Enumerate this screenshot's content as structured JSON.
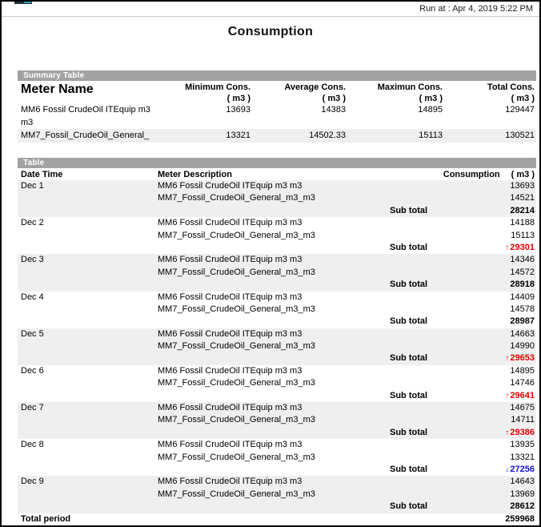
{
  "page": {
    "run_at": "Run at : Apr 4, 2019 5:22 PM",
    "title": "Consumption"
  },
  "summary_table": {
    "section_label": "Summary Table",
    "meter_name_header": "Meter Name",
    "unit_label": "( m3 )",
    "numeric_columns": [
      "Minimum Cons.",
      "Average Cons.",
      "Maximun Cons.",
      "Total Cons."
    ],
    "rows": [
      {
        "meter_name": "MM6 Fossil CrudeOil ITEquip m3 m3",
        "values": [
          "13693",
          "14383",
          "14895",
          "129447"
        ]
      },
      {
        "meter_name": "MM7_Fossil_CrudeOil_General_",
        "values": [
          "13321",
          "14502.33",
          "15113",
          "130521"
        ]
      }
    ]
  },
  "detail_table": {
    "section_label": "Table",
    "date_header": "Date Time",
    "meter_header": "Meter Description",
    "consumption_header": "Consumption",
    "unit_label": "( m3 )",
    "subtotal_label": "Sub total",
    "days": [
      {
        "date": "Dec 1",
        "rows": [
          {
            "desc": "MM6 Fossil CrudeOil ITEquip m3 m3",
            "value": "13693"
          },
          {
            "desc": "MM7_Fossil_CrudeOil_General_m3_m3",
            "value": "14521"
          }
        ],
        "subtotal": "28214",
        "trend": "flat"
      },
      {
        "date": "Dec 2",
        "rows": [
          {
            "desc": "MM6 Fossil CrudeOil ITEquip m3 m3",
            "value": "14188"
          },
          {
            "desc": "MM7_Fossil_CrudeOil_General_m3_m3",
            "value": "15113"
          }
        ],
        "subtotal": "29301",
        "trend": "up"
      },
      {
        "date": "Dec 3",
        "rows": [
          {
            "desc": "MM6 Fossil CrudeOil ITEquip m3 m3",
            "value": "14346"
          },
          {
            "desc": "MM7_Fossil_CrudeOil_General_m3_m3",
            "value": "14572"
          }
        ],
        "subtotal": "28918",
        "trend": "flat"
      },
      {
        "date": "Dec 4",
        "rows": [
          {
            "desc": "MM6 Fossil CrudeOil ITEquip m3 m3",
            "value": "14409"
          },
          {
            "desc": "MM7_Fossil_CrudeOil_General_m3_m3",
            "value": "14578"
          }
        ],
        "subtotal": "28987",
        "trend": "flat"
      },
      {
        "date": "Dec 5",
        "rows": [
          {
            "desc": "MM6 Fossil CrudeOil ITEquip m3 m3",
            "value": "14663"
          },
          {
            "desc": "MM7_Fossil_CrudeOil_General_m3_m3",
            "value": "14990"
          }
        ],
        "subtotal": "29653",
        "trend": "up"
      },
      {
        "date": "Dec 6",
        "rows": [
          {
            "desc": "MM6 Fossil CrudeOil ITEquip m3 m3",
            "value": "14895"
          },
          {
            "desc": "MM7_Fossil_CrudeOil_General_m3_m3",
            "value": "14746"
          }
        ],
        "subtotal": "29641",
        "trend": "up"
      },
      {
        "date": "Dec 7",
        "rows": [
          {
            "desc": "MM6 Fossil CrudeOil ITEquip m3 m3",
            "value": "14675"
          },
          {
            "desc": "MM7_Fossil_CrudeOil_General_m3_m3",
            "value": "14711"
          }
        ],
        "subtotal": "29386",
        "trend": "up"
      },
      {
        "date": "Dec 8",
        "rows": [
          {
            "desc": "MM6 Fossil CrudeOil ITEquip m3 m3",
            "value": "13935"
          },
          {
            "desc": "MM7_Fossil_CrudeOil_General_m3_m3",
            "value": "13321"
          }
        ],
        "subtotal": "27256",
        "trend": "down"
      },
      {
        "date": "Dec 9",
        "rows": [
          {
            "desc": "MM6 Fossil CrudeOil ITEquip m3 m3",
            "value": "14643"
          },
          {
            "desc": "MM7_Fossil_CrudeOil_General_m3_m3",
            "value": "13969"
          }
        ],
        "subtotal": "28612",
        "trend": "flat"
      }
    ],
    "total_label": "Total period",
    "total_value": "259968"
  },
  "icons": {
    "trend_up_arrow": "↑",
    "trend_down_arrow": "↓"
  },
  "colors": {
    "trend_up": "#e80000",
    "trend_down": "#1414d2",
    "section_bar": "#a2a2a2",
    "alt_row": "#efefef"
  }
}
